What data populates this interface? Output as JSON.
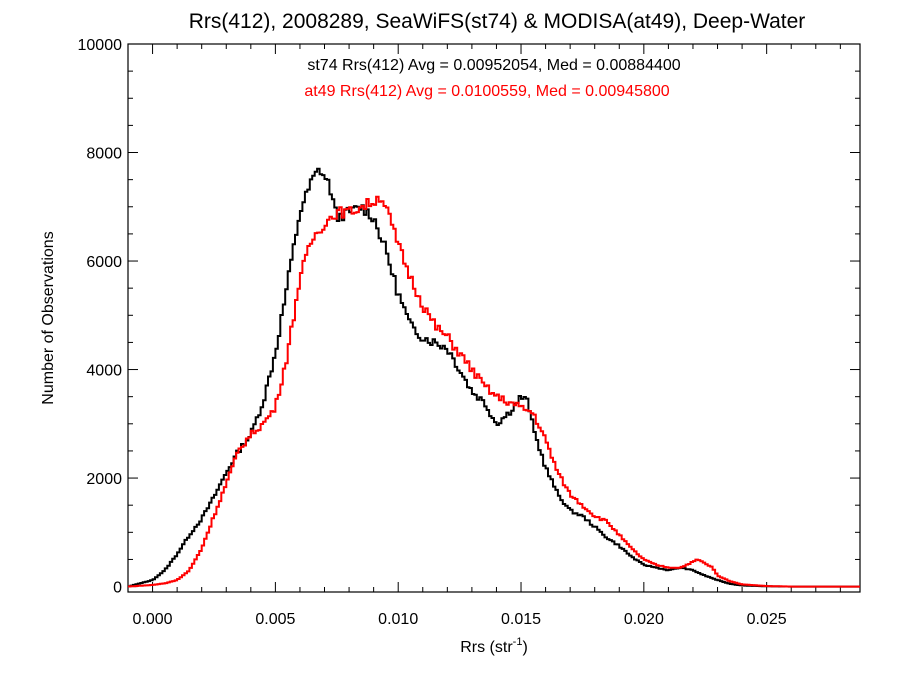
{
  "chart_data": {
    "type": "line",
    "step": true,
    "title": "Rrs(412), 2008289, SeaWiFS(st74) & MODISA(at49), Deep-Water",
    "xlabel": "Rrs (str",
    "xlabel_sup": "-1",
    "xlabel_close": ")",
    "ylabel": "Number of Observations",
    "xlim": [
      -0.001,
      0.0288
    ],
    "ylim": [
      -100,
      10000
    ],
    "x_ticks": [
      0.0,
      0.005,
      0.01,
      0.015,
      0.02,
      0.025
    ],
    "x_tick_labels": [
      "0.000",
      "0.005",
      "0.010",
      "0.015",
      "0.020",
      "0.025"
    ],
    "y_ticks": [
      0,
      2000,
      4000,
      6000,
      8000,
      10000
    ],
    "y_tick_labels": [
      "0",
      "2000",
      "4000",
      "6000",
      "8000",
      "10000"
    ],
    "grid": false,
    "annotations": [
      {
        "text": "st74 Rrs(412) Avg = 0.00952054, Med = 0.00884400",
        "color": "#000000"
      },
      {
        "text": "at49 Rrs(412) Avg = 0.0100559, Med = 0.00945800",
        "color": "#ff0000"
      }
    ],
    "series": [
      {
        "color": "#000000",
        "points": [
          [
            -0.001,
            0
          ],
          [
            0.0,
            120
          ],
          [
            0.0005,
            300
          ],
          [
            0.001,
            600
          ],
          [
            0.0015,
            950
          ],
          [
            0.002,
            1250
          ],
          [
            0.0025,
            1650
          ],
          [
            0.003,
            2100
          ],
          [
            0.0035,
            2500
          ],
          [
            0.004,
            2800
          ],
          [
            0.0045,
            3400
          ],
          [
            0.005,
            4300
          ],
          [
            0.0055,
            5600
          ],
          [
            0.006,
            6900
          ],
          [
            0.0065,
            7500
          ],
          [
            0.0068,
            7700
          ],
          [
            0.0072,
            7400
          ],
          [
            0.0075,
            6800
          ],
          [
            0.008,
            6900
          ],
          [
            0.0085,
            7000
          ],
          [
            0.009,
            6800
          ],
          [
            0.0095,
            6200
          ],
          [
            0.01,
            5400
          ],
          [
            0.0105,
            4800
          ],
          [
            0.011,
            4600
          ],
          [
            0.0115,
            4500
          ],
          [
            0.012,
            4400
          ],
          [
            0.0125,
            4000
          ],
          [
            0.013,
            3600
          ],
          [
            0.0135,
            3400
          ],
          [
            0.014,
            3000
          ],
          [
            0.0145,
            3200
          ],
          [
            0.015,
            3500
          ],
          [
            0.0153,
            3400
          ],
          [
            0.0155,
            2900
          ],
          [
            0.016,
            2200
          ],
          [
            0.0165,
            1700
          ],
          [
            0.017,
            1400
          ],
          [
            0.0175,
            1300
          ],
          [
            0.018,
            1100
          ],
          [
            0.0185,
            900
          ],
          [
            0.019,
            750
          ],
          [
            0.0195,
            550
          ],
          [
            0.02,
            400
          ],
          [
            0.0205,
            350
          ],
          [
            0.021,
            300
          ],
          [
            0.0215,
            350
          ],
          [
            0.022,
            300
          ],
          [
            0.0225,
            200
          ],
          [
            0.023,
            120
          ],
          [
            0.0235,
            50
          ],
          [
            0.024,
            20
          ],
          [
            0.025,
            5
          ],
          [
            0.026,
            0
          ],
          [
            0.0288,
            0
          ]
        ]
      },
      {
        "color": "#ff0000",
        "points": [
          [
            -0.001,
            0
          ],
          [
            0.0,
            30
          ],
          [
            0.0005,
            60
          ],
          [
            0.001,
            120
          ],
          [
            0.0015,
            300
          ],
          [
            0.002,
            700
          ],
          [
            0.0025,
            1300
          ],
          [
            0.003,
            1900
          ],
          [
            0.0035,
            2500
          ],
          [
            0.004,
            2800
          ],
          [
            0.0045,
            3000
          ],
          [
            0.005,
            3300
          ],
          [
            0.0055,
            4300
          ],
          [
            0.006,
            5700
          ],
          [
            0.0065,
            6400
          ],
          [
            0.007,
            6700
          ],
          [
            0.0075,
            6900
          ],
          [
            0.008,
            6900
          ],
          [
            0.0085,
            7000
          ],
          [
            0.009,
            7100
          ],
          [
            0.0093,
            7200
          ],
          [
            0.0095,
            7000
          ],
          [
            0.01,
            6300
          ],
          [
            0.0105,
            5700
          ],
          [
            0.011,
            5200
          ],
          [
            0.0115,
            4800
          ],
          [
            0.012,
            4600
          ],
          [
            0.0125,
            4300
          ],
          [
            0.013,
            4000
          ],
          [
            0.0135,
            3700
          ],
          [
            0.014,
            3500
          ],
          [
            0.0145,
            3400
          ],
          [
            0.015,
            3300
          ],
          [
            0.0155,
            3200
          ],
          [
            0.016,
            2700
          ],
          [
            0.0165,
            2100
          ],
          [
            0.017,
            1700
          ],
          [
            0.0175,
            1500
          ],
          [
            0.018,
            1300
          ],
          [
            0.0185,
            1200
          ],
          [
            0.019,
            950
          ],
          [
            0.0195,
            700
          ],
          [
            0.02,
            500
          ],
          [
            0.0205,
            400
          ],
          [
            0.021,
            350
          ],
          [
            0.0215,
            350
          ],
          [
            0.0222,
            500
          ],
          [
            0.0228,
            350
          ],
          [
            0.023,
            200
          ],
          [
            0.0235,
            100
          ],
          [
            0.024,
            40
          ],
          [
            0.025,
            10
          ],
          [
            0.026,
            0
          ],
          [
            0.0288,
            0
          ]
        ]
      }
    ]
  }
}
